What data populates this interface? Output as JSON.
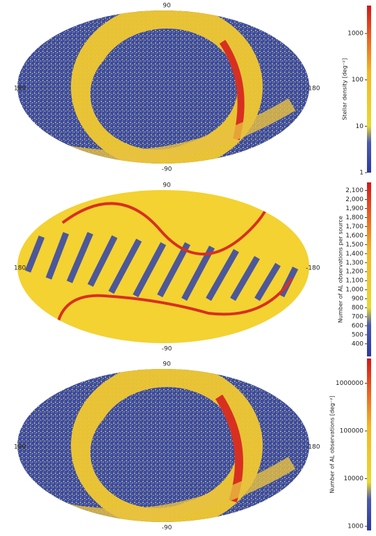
{
  "chart_data": [
    {
      "type": "skymap",
      "lat_ticks": [
        90,
        -90
      ],
      "lon_ticks": [
        180,
        -180
      ],
      "colorbar_label": "Stellar density [deg⁻²]",
      "colorbar_scale": "log",
      "ylim": [
        1,
        4000
      ],
      "yticks": [
        1,
        10,
        100,
        1000
      ]
    },
    {
      "type": "skymap",
      "lat_ticks": [
        90,
        -90
      ],
      "lon_ticks": [
        180,
        -180
      ],
      "colorbar_label": "Number of AL observations per source",
      "colorbar_scale": "linear",
      "ylim": [
        260,
        2190
      ],
      "yticks": [
        400,
        500,
        600,
        700,
        800,
        900,
        {
          "value": 1000,
          "label": "1,000"
        },
        {
          "value": 1100,
          "label": "1,100"
        },
        {
          "value": 1200,
          "label": "1,200"
        },
        {
          "value": 1300,
          "label": "1,300"
        },
        {
          "value": 1400,
          "label": "1,400"
        },
        {
          "value": 1500,
          "label": "1,500"
        },
        {
          "value": 1600,
          "label": "1,600"
        },
        {
          "value": 1700,
          "label": "1,700"
        },
        {
          "value": 1800,
          "label": "1,800"
        },
        {
          "value": 1900,
          "label": "1,900"
        },
        {
          "value": 2000,
          "label": "2,000"
        },
        {
          "value": 2100,
          "label": "2,100"
        }
      ]
    },
    {
      "type": "skymap",
      "lat_ticks": [
        90,
        -90
      ],
      "lon_ticks": [
        180,
        -180
      ],
      "colorbar_label": "Number of AL observations [deg⁻²]",
      "colorbar_scale": "log",
      "ylim": [
        820,
        3300000
      ],
      "yticks": [
        1000,
        10000,
        100000,
        1000000
      ]
    }
  ]
}
